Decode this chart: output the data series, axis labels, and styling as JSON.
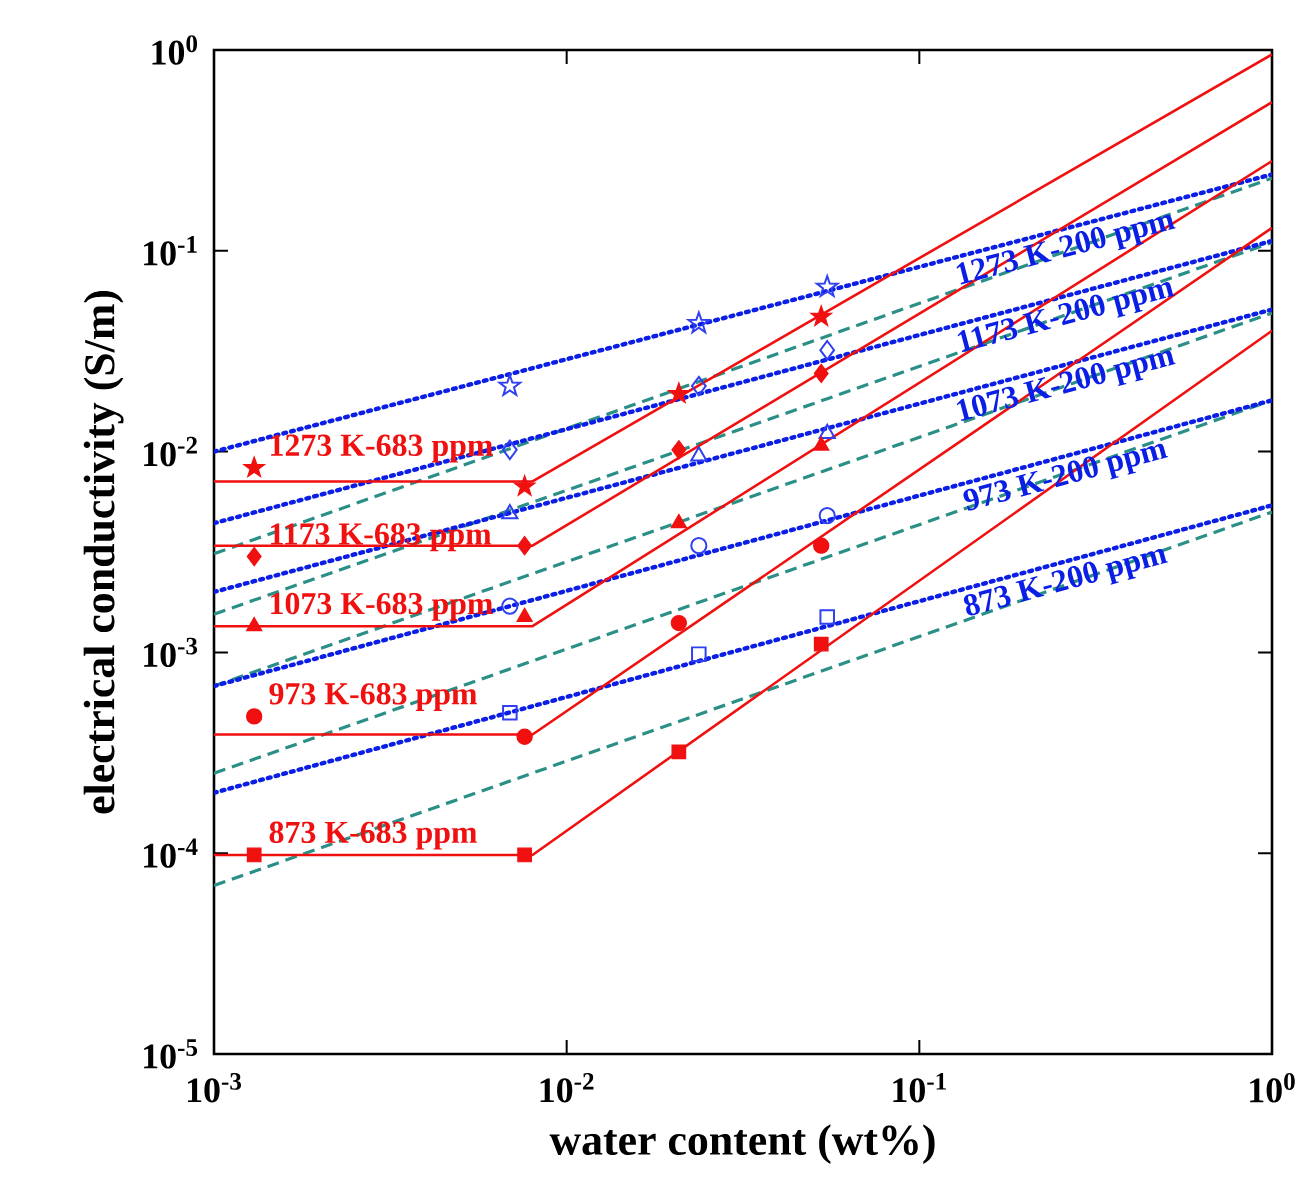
{
  "chart_data": {
    "type": "scatter",
    "xlabel": "water content (wt%)",
    "ylabel": "electrical conductivity (S/m)",
    "log": "xy",
    "grid": false,
    "legend": false,
    "xlim": [
      0.001,
      1
    ],
    "ylim": [
      1e-05,
      1
    ],
    "xticks": [
      {
        "value": 0.001,
        "label": "10$^{-3}$"
      },
      {
        "value": 0.01,
        "label": "10$^{-2}$"
      },
      {
        "value": 0.1,
        "label": "10$^{-1}$"
      },
      {
        "value": 1,
        "label": "10$^{0}$"
      }
    ],
    "yticks": [
      {
        "value": 1e-05,
        "label": "10$^{-5}$"
      },
      {
        "value": 0.0001,
        "label": "10$^{-4}$"
      },
      {
        "value": 0.001,
        "label": "10$^{-3}$"
      },
      {
        "value": 0.01,
        "label": "10$^{-2}$"
      },
      {
        "value": 0.1,
        "label": "10$^{-1}$"
      },
      {
        "value": 1,
        "label": "10$^{0}$"
      }
    ],
    "series": [
      {
        "type": "line",
        "color": "#2a8f86",
        "line_style": "dashed",
        "x": [
          0.001,
          1
        ],
        "values": [
          0.0031,
          0.23
        ]
      },
      {
        "type": "line",
        "color": "#2a8f86",
        "line_style": "dashed",
        "x": [
          0.001,
          1
        ],
        "values": [
          0.00155,
          0.11
        ]
      },
      {
        "type": "line",
        "color": "#2a8f86",
        "line_style": "dashed",
        "x": [
          0.001,
          1
        ],
        "values": [
          0.00068,
          0.049
        ]
      },
      {
        "type": "line",
        "color": "#2a8f86",
        "line_style": "dashed",
        "x": [
          0.001,
          1
        ],
        "values": [
          0.00025,
          0.018
        ]
      },
      {
        "type": "line",
        "color": "#2a8f86",
        "line_style": "dashed",
        "x": [
          0.001,
          1
        ],
        "values": [
          6.9e-05,
          0.005
        ]
      },
      {
        "name": "1273 K-200 ppm",
        "type": "line",
        "color": "#0a1ee6",
        "line_style": "dotted",
        "x": [
          0.001,
          1
        ],
        "values": [
          0.01,
          0.24
        ]
      },
      {
        "name": "1173 K-200 ppm",
        "type": "line",
        "color": "#0a1ee6",
        "line_style": "dotted",
        "x": [
          0.001,
          1
        ],
        "values": [
          0.0044,
          0.112
        ]
      },
      {
        "name": "1073 K-200 ppm",
        "type": "line",
        "color": "#0a1ee6",
        "line_style": "dotted",
        "x": [
          0.001,
          1
        ],
        "values": [
          0.002,
          0.051
        ]
      },
      {
        "name": "973 K-200 ppm",
        "type": "line",
        "color": "#0a1ee6",
        "line_style": "dotted",
        "x": [
          0.001,
          1
        ],
        "values": [
          0.00068,
          0.018
        ]
      },
      {
        "name": "873 K-200 ppm",
        "type": "line",
        "color": "#0a1ee6",
        "line_style": "dotted",
        "x": [
          0.001,
          1
        ],
        "values": [
          0.0002,
          0.0054
        ]
      },
      {
        "type": "line",
        "color": "#f01010",
        "line_style": "solid",
        "x": [
          0.001,
          0.008,
          1
        ],
        "values": [
          0.0071,
          0.0071,
          0.95
        ]
      },
      {
        "type": "line",
        "color": "#f01010",
        "line_style": "solid",
        "x": [
          0.001,
          0.008,
          1
        ],
        "values": [
          0.0034,
          0.0034,
          0.55
        ]
      },
      {
        "type": "line",
        "color": "#f01010",
        "line_style": "solid",
        "x": [
          0.001,
          0.008,
          1
        ],
        "values": [
          0.00135,
          0.00135,
          0.28
        ]
      },
      {
        "type": "line",
        "color": "#f01010",
        "line_style": "solid",
        "x": [
          0.001,
          0.008,
          1
        ],
        "values": [
          0.00039,
          0.00039,
          0.13
        ]
      },
      {
        "type": "line",
        "color": "#f01010",
        "line_style": "solid",
        "x": [
          0.001,
          0.008,
          1
        ],
        "values": [
          9.8e-05,
          9.8e-05,
          0.04
        ]
      },
      {
        "color": "#3040f0",
        "marker": "star",
        "x": [
          0.0069,
          0.0237,
          0.0548
        ],
        "values": [
          0.0212,
          0.0435,
          0.066
        ]
      },
      {
        "color": "#3040f0",
        "marker": "diamond",
        "x": [
          0.0069,
          0.0237,
          0.0548
        ],
        "values": [
          0.0102,
          0.0212,
          0.032
        ]
      },
      {
        "color": "#3040f0",
        "marker": "triangle",
        "x": [
          0.0069,
          0.0237,
          0.0548
        ],
        "values": [
          0.0049,
          0.0095,
          0.0123
        ]
      },
      {
        "color": "#3040f0",
        "marker": "circle",
        "x": [
          0.0069,
          0.0237,
          0.0548
        ],
        "values": [
          0.0017,
          0.0034,
          0.0048
        ]
      },
      {
        "color": "#3040f0",
        "marker": "square",
        "x": [
          0.0069,
          0.0237,
          0.0548
        ],
        "values": [
          0.0005,
          0.00098,
          0.0015
        ]
      },
      {
        "name": "1273 K-683 ppm",
        "color": "#f01010",
        "marker": "star",
        "x": [
          0.0013,
          0.0076,
          0.0208,
          0.0527
        ],
        "values": [
          0.0083,
          0.0067,
          0.0194,
          0.047
        ]
      },
      {
        "name": "1173 K-683 ppm",
        "color": "#f01010",
        "marker": "diamond",
        "x": [
          0.0013,
          0.0076,
          0.0208,
          0.0527
        ],
        "values": [
          0.003,
          0.0034,
          0.0102,
          0.0245
        ]
      },
      {
        "name": "1073 K-683 ppm",
        "color": "#f01010",
        "marker": "triangle",
        "x": [
          0.0013,
          0.0076,
          0.0208,
          0.0527
        ],
        "values": [
          0.00135,
          0.0015,
          0.0044,
          0.0107
        ]
      },
      {
        "name": "973 K-683 ppm",
        "color": "#f01010",
        "marker": "circle",
        "x": [
          0.0013,
          0.0076,
          0.0208,
          0.0527
        ],
        "values": [
          0.00048,
          0.00038,
          0.0014,
          0.0034
        ]
      },
      {
        "name": "873 K-683 ppm",
        "color": "#f01010",
        "marker": "square",
        "x": [
          0.0013,
          0.0076,
          0.0208,
          0.0527
        ],
        "values": [
          9.8e-05,
          9.8e-05,
          0.00032,
          0.0011
        ]
      }
    ]
  }
}
